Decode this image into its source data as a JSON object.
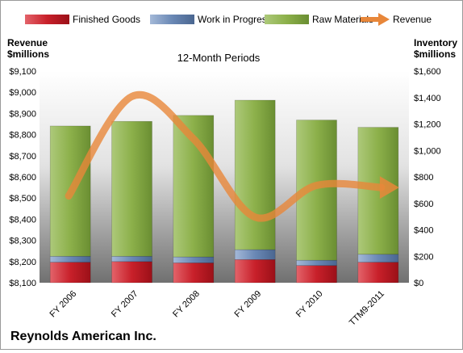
{
  "chart_data": {
    "type": "bar",
    "title": "12-Month Periods",
    "company": "Reynolds American Inc.",
    "categories": [
      "FY 2006",
      "FY 2007",
      "FY 2008",
      "FY 2009",
      "FY 2010",
      "TTM9-2011"
    ],
    "left_axis": {
      "label_line1": "Revenue",
      "label_line2": "$millions",
      "range": [
        8100,
        9100
      ],
      "ticks": [
        8100,
        8200,
        8300,
        8400,
        8500,
        8600,
        8700,
        8800,
        8900,
        9000,
        9100
      ],
      "tick_labels": [
        "$8,100",
        "$8,200",
        "$8,300",
        "$8,400",
        "$8,500",
        "$8,600",
        "$8,700",
        "$8,800",
        "$8,900",
        "$9,000",
        "$9,100"
      ]
    },
    "right_axis": {
      "label_line1": "Inventory",
      "label_line2": "$millions",
      "range": [
        0,
        1600
      ],
      "ticks": [
        0,
        200,
        400,
        600,
        800,
        1000,
        1200,
        1400,
        1600
      ],
      "tick_labels": [
        "$0",
        "$200",
        "$400",
        "$600",
        "$800",
        "$1,000",
        "$1,200",
        "$1,400",
        "$1,600"
      ]
    },
    "stacked_series": [
      {
        "name": "Finished Goods",
        "color": "#c8202a",
        "values": [
          155,
          160,
          150,
          175,
          130,
          155
        ]
      },
      {
        "name": "Work in Progress",
        "color": "#6a88b5",
        "values": [
          45,
          40,
          45,
          75,
          40,
          60
        ]
      },
      {
        "name": "Raw Materials",
        "color": "#8cb04a",
        "values": [
          985,
          1020,
          1070,
          1130,
          1060,
          960
        ]
      }
    ],
    "line_series": {
      "name": "Revenue",
      "color": "#e8873a",
      "axis": "left",
      "values": [
        8510,
        8980,
        8780,
        8410,
        8560,
        8550
      ]
    },
    "legend_position": "top",
    "grid": false
  }
}
